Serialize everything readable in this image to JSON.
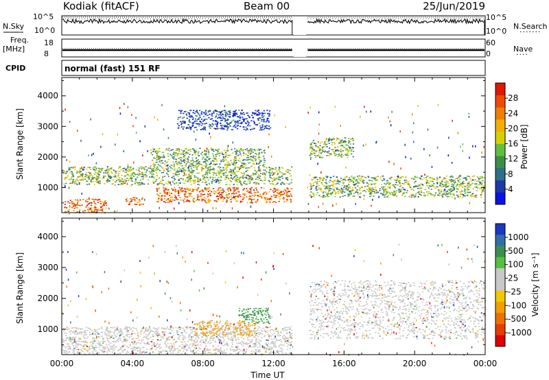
{
  "header": {
    "station": "Kodiak (fitACF)",
    "beam": "Beam 00",
    "date": "25/Jun/2019"
  },
  "strips": {
    "nsky_label": "N.Sky",
    "nsearch_label": "N.Search",
    "nsky_ticks": [
      "10^5",
      "10^0"
    ],
    "nsearch_ticks": [
      "10^5",
      "10^0"
    ],
    "freq_label": "Freq.",
    "freq_unit": "[MHz]",
    "freq_ticks": [
      "18",
      "8"
    ],
    "nave_label": "Nave",
    "nave_ticks": [
      "60",
      "0"
    ],
    "cpid_label": "CPID",
    "cpid_text": "normal (fast) 151 RF"
  },
  "chart_data": [
    {
      "type": "heatmap",
      "name": "power",
      "xlabel": "",
      "ylabel": "Slant Range [km]",
      "xlim": [
        0,
        24
      ],
      "ylim": [
        180,
        4600
      ],
      "yticks": [
        1000,
        2000,
        3000,
        4000
      ],
      "data_gap_hours": [
        13.1,
        13.9
      ],
      "colorbar": {
        "label": "Power [dB]",
        "ticks": [
          "4",
          "8",
          "12",
          "16",
          "20",
          "24",
          "28"
        ],
        "colors": [
          "#0a14e0",
          "#1c3aa8",
          "#2e6f8a",
          "#3c8f4a",
          "#5fc040",
          "#d6d200",
          "#f3b000",
          "#f07f00",
          "#ee4a00",
          "#e01800"
        ]
      },
      "features": [
        {
          "t": [
            0.1,
            2.5
          ],
          "r": [
            190,
            640
          ],
          "level": "high"
        },
        {
          "t": [
            3.6,
            4.6
          ],
          "r": [
            450,
            700
          ],
          "level": "high"
        },
        {
          "t": [
            5.3,
            13.0
          ],
          "r": [
            520,
            1020
          ],
          "level": "high"
        },
        {
          "t": [
            0.0,
            13.0
          ],
          "r": [
            1100,
            1700
          ],
          "level": "medium"
        },
        {
          "t": [
            5.0,
            11.5
          ],
          "r": [
            1700,
            2300
          ],
          "level": "medium"
        },
        {
          "t": [
            6.5,
            11.8
          ],
          "r": [
            2900,
            3550
          ],
          "level": "low"
        },
        {
          "t": [
            14.0,
            16.5
          ],
          "r": [
            2000,
            2650
          ],
          "level": "medium"
        },
        {
          "t": [
            14.0,
            24.0
          ],
          "r": [
            700,
            1400
          ],
          "level": "medium"
        }
      ]
    },
    {
      "type": "heatmap",
      "name": "velocity",
      "xlabel": "Time UT",
      "ylabel": "Slant Range [km]",
      "xlim": [
        0,
        24
      ],
      "ylim": [
        180,
        4600
      ],
      "xticks": [
        "00:00",
        "04:00",
        "08:00",
        "12:00",
        "16:00",
        "20:00",
        "00:00"
      ],
      "yticks": [
        1000,
        2000,
        3000,
        4000
      ],
      "data_gap_hours": [
        13.1,
        13.9
      ],
      "colorbar": {
        "label": "Velocity [m s⁻¹]",
        "ticks": [
          "1000",
          "500",
          "100",
          "25",
          "-25",
          "-100",
          "-500",
          "-1000"
        ],
        "colors": [
          "#1838c8",
          "#2f6fa8",
          "#3a9050",
          "#56c040",
          "#c8c8c8",
          "#c8c8c8",
          "#f2c800",
          "#f2a000",
          "#ee7000",
          "#e83c00",
          "#e00000"
        ]
      },
      "features": [
        {
          "t": [
            0.0,
            13.0
          ],
          "r": [
            190,
            1100
          ],
          "level": "ground"
        },
        {
          "t": [
            7.5,
            11.0
          ],
          "r": [
            800,
            1300
          ],
          "level": "away"
        },
        {
          "t": [
            10.0,
            11.8
          ],
          "r": [
            1200,
            1700
          ],
          "level": "toward"
        },
        {
          "t": [
            14.0,
            24.0
          ],
          "r": [
            700,
            2600
          ],
          "level": "ground"
        }
      ]
    }
  ]
}
